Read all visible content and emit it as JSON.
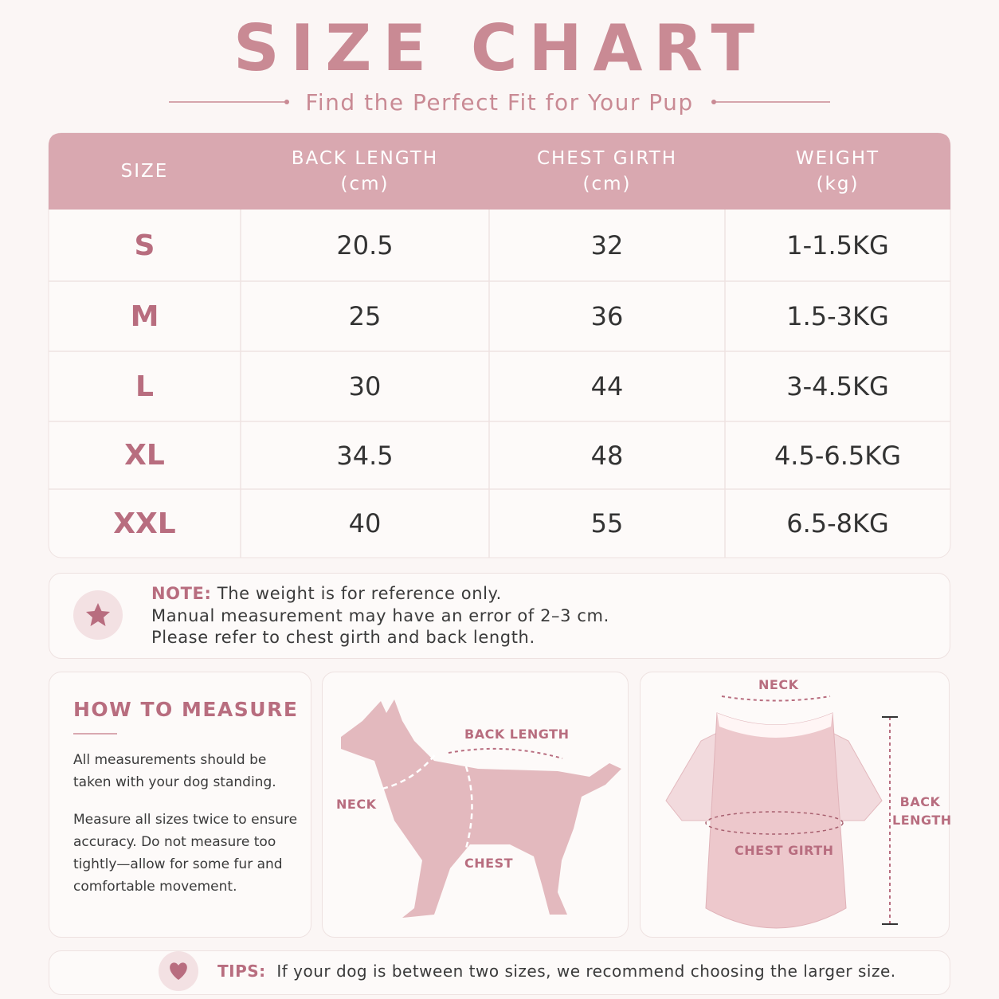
{
  "header": {
    "title": "SIZE CHART",
    "subtitle": "Find the Perfect Fit for Your Pup"
  },
  "table": {
    "columns": [
      {
        "label": "SIZE"
      },
      {
        "label": "BACK LENGTH",
        "unit": "(cm)"
      },
      {
        "label": "CHEST GIRTH",
        "unit": "(cm)"
      },
      {
        "label": "WEIGHT",
        "unit": "(kg)"
      }
    ],
    "rows": [
      [
        "S",
        20.5,
        32,
        "1-1.5KG"
      ],
      [
        "M",
        25,
        36,
        "1.5-3KG"
      ],
      [
        "L",
        30,
        44,
        "3-4.5KG"
      ],
      [
        "XL",
        34.5,
        48,
        "4.5-6.5KG"
      ],
      [
        "XXL",
        40,
        55,
        "6.5-8KG"
      ]
    ]
  },
  "note": {
    "label": "NOTE:",
    "lines": [
      "The weight is for reference only.",
      "Manual measurement may have an error of 2–3 cm.",
      "Please refer to chest girth and back length."
    ]
  },
  "how_to_measure": {
    "title": "HOW TO MEASURE",
    "paragraphs": [
      "All measurements should be taken with your dog standing.",
      "Measure all sizes twice to ensure accuracy. Do not measure too tightly—allow for some fur and comfortable movement."
    ]
  },
  "dog_diagram": {
    "neck": "NECK",
    "back_length": "BACK LENGTH",
    "chest": "CHEST"
  },
  "shirt_diagram": {
    "neck": "NECK",
    "back_length": [
      "BACK",
      "LENGTH"
    ],
    "chest_girth": "CHEST GIRTH"
  },
  "tips": {
    "label": "TIPS:",
    "text": "If your dog is between two sizes, we recommend choosing the larger size."
  }
}
